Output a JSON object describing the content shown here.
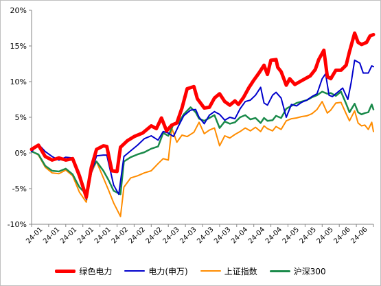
{
  "chart_data": {
    "type": "line",
    "title": "",
    "xlabel": "",
    "ylabel": "",
    "ylim": [
      -10,
      20
    ],
    "yticks": [
      -10,
      -5,
      0,
      5,
      10,
      15,
      20
    ],
    "ytick_labels": [
      "-10%",
      "-5%",
      "0%",
      "5%",
      "10%",
      "15%",
      "20%"
    ],
    "xtick_labels": [
      "24-01",
      "24-01",
      "24-01",
      "24-01",
      "24-01",
      "24-02",
      "24-02",
      "24-02",
      "24-03",
      "24-03",
      "24-03",
      "24-03",
      "24-04",
      "24-04",
      "24-04",
      "24-05",
      "24-05",
      "24-05",
      "24-06",
      "24-06"
    ],
    "grid": false,
    "legend_position": "bottom",
    "x_count": 20,
    "series": [
      {
        "name": "绿色电力",
        "color": "#ff0000",
        "values": [
          [
            0,
            0.5
          ],
          [
            0.4,
            1.1
          ],
          [
            0.8,
            -0.5
          ],
          [
            1.2,
            -1.0
          ],
          [
            1.6,
            -0.7
          ],
          [
            2.0,
            -1.0
          ],
          [
            2.4,
            -0.8
          ],
          [
            2.8,
            -3.2
          ],
          [
            3.2,
            -6.2
          ],
          [
            3.5,
            -2.0
          ],
          [
            3.8,
            0.5
          ],
          [
            4.2,
            1.0
          ],
          [
            4.4,
            0.9
          ],
          [
            4.7,
            -2.5
          ],
          [
            5.0,
            -2.6
          ],
          [
            5.2,
            0.8
          ],
          [
            5.6,
            1.7
          ],
          [
            6.0,
            2.3
          ],
          [
            6.5,
            2.8
          ],
          [
            7.0,
            3.8
          ],
          [
            7.3,
            3.4
          ],
          [
            7.6,
            4.9
          ],
          [
            7.9,
            3.1
          ],
          [
            8.2,
            3.9
          ],
          [
            8.5,
            4.2
          ],
          [
            8.8,
            6.3
          ],
          [
            9.1,
            9.0
          ],
          [
            9.5,
            9.3
          ],
          [
            9.7,
            7.6
          ],
          [
            10.1,
            6.3
          ],
          [
            10.4,
            6.4
          ],
          [
            10.7,
            7.7
          ],
          [
            11.0,
            8.3
          ],
          [
            11.3,
            7.2
          ],
          [
            11.6,
            6.7
          ],
          [
            11.9,
            7.3
          ],
          [
            12.1,
            6.8
          ],
          [
            12.4,
            7.8
          ],
          [
            12.7,
            9.1
          ],
          [
            13.0,
            10.2
          ],
          [
            13.3,
            11.2
          ],
          [
            13.6,
            12.3
          ],
          [
            13.8,
            11.0
          ],
          [
            14.0,
            13.0
          ],
          [
            14.3,
            13.1
          ],
          [
            14.4,
            12.0
          ],
          [
            14.6,
            11.4
          ],
          [
            14.9,
            9.5
          ],
          [
            15.1,
            10.4
          ],
          [
            15.4,
            9.6
          ],
          [
            15.7,
            10.0
          ],
          [
            16.0,
            10.4
          ],
          [
            16.3,
            10.8
          ],
          [
            16.6,
            11.7
          ],
          [
            16.8,
            13.1
          ],
          [
            17.1,
            14.4
          ],
          [
            17.3,
            10.7
          ],
          [
            17.5,
            10.4
          ],
          [
            17.8,
            11.6
          ],
          [
            18.1,
            11.6
          ],
          [
            18.4,
            12.3
          ],
          [
            18.6,
            14.2
          ],
          [
            18.9,
            16.8
          ],
          [
            19.1,
            15.5
          ],
          [
            19.3,
            15.2
          ],
          [
            19.6,
            15.5
          ],
          [
            19.8,
            16.4
          ],
          [
            20.0,
            16.6
          ]
        ]
      },
      {
        "name": "电力(申万)",
        "color": "#0000cc",
        "values": [
          [
            0,
            0.2
          ],
          [
            0.4,
            1.2
          ],
          [
            0.8,
            0.2
          ],
          [
            1.2,
            -0.5
          ],
          [
            1.6,
            -1.0
          ],
          [
            2.0,
            -0.6
          ],
          [
            2.4,
            -0.7
          ],
          [
            2.8,
            -2.8
          ],
          [
            3.2,
            -6.5
          ],
          [
            3.5,
            -2.8
          ],
          [
            3.8,
            -0.4
          ],
          [
            4.2,
            -0.3
          ],
          [
            4.4,
            -0.3
          ],
          [
            4.8,
            -4.5
          ],
          [
            5.1,
            -5.8
          ],
          [
            5.4,
            -0.5
          ],
          [
            5.8,
            0.3
          ],
          [
            6.2,
            1.1
          ],
          [
            6.6,
            2.0
          ],
          [
            7.0,
            2.4
          ],
          [
            7.4,
            1.8
          ],
          [
            7.7,
            3.0
          ],
          [
            8.0,
            2.8
          ],
          [
            8.3,
            2.3
          ],
          [
            8.6,
            3.8
          ],
          [
            8.9,
            5.2
          ],
          [
            9.3,
            6.0
          ],
          [
            9.6,
            6.1
          ],
          [
            9.8,
            5.0
          ],
          [
            10.1,
            4.1
          ],
          [
            10.4,
            5.3
          ],
          [
            10.7,
            5.8
          ],
          [
            11.0,
            5.4
          ],
          [
            11.3,
            4.6
          ],
          [
            11.6,
            5.0
          ],
          [
            11.9,
            4.8
          ],
          [
            12.2,
            6.2
          ],
          [
            12.5,
            7.2
          ],
          [
            12.8,
            7.4
          ],
          [
            13.1,
            8.1
          ],
          [
            13.4,
            9.2
          ],
          [
            13.6,
            7.0
          ],
          [
            13.8,
            6.7
          ],
          [
            14.1,
            8.1
          ],
          [
            14.3,
            8.5
          ],
          [
            14.6,
            7.7
          ],
          [
            14.9,
            5.0
          ],
          [
            15.2,
            6.8
          ],
          [
            15.5,
            6.6
          ],
          [
            15.8,
            7.1
          ],
          [
            16.1,
            7.4
          ],
          [
            16.4,
            7.9
          ],
          [
            16.7,
            8.3
          ],
          [
            17.0,
            10.4
          ],
          [
            17.2,
            11.1
          ],
          [
            17.4,
            8.1
          ],
          [
            17.6,
            7.9
          ],
          [
            17.9,
            8.5
          ],
          [
            18.2,
            9.1
          ],
          [
            18.5,
            7.5
          ],
          [
            18.7,
            9.9
          ],
          [
            18.9,
            13.0
          ],
          [
            19.2,
            12.6
          ],
          [
            19.4,
            11.2
          ],
          [
            19.7,
            11.2
          ],
          [
            19.9,
            12.2
          ],
          [
            20.0,
            12.1
          ]
        ]
      },
      {
        "name": "上证指数",
        "color": "#ff8c00",
        "values": [
          [
            0,
            0.3
          ],
          [
            0.4,
            -0.3
          ],
          [
            0.8,
            -2.0
          ],
          [
            1.2,
            -2.8
          ],
          [
            1.6,
            -2.9
          ],
          [
            2.0,
            -2.4
          ],
          [
            2.4,
            -3.2
          ],
          [
            2.8,
            -5.5
          ],
          [
            3.2,
            -6.9
          ],
          [
            3.5,
            -2.8
          ],
          [
            3.8,
            -1.2
          ],
          [
            4.2,
            -3.5
          ],
          [
            4.5,
            -5.2
          ],
          [
            4.8,
            -7.0
          ],
          [
            5.2,
            -8.9
          ],
          [
            5.4,
            -4.8
          ],
          [
            5.8,
            -3.5
          ],
          [
            6.2,
            -3.2
          ],
          [
            6.6,
            -2.8
          ],
          [
            7.0,
            -2.5
          ],
          [
            7.4,
            -1.5
          ],
          [
            7.7,
            -0.8
          ],
          [
            8.0,
            -1.0
          ],
          [
            8.2,
            3.5
          ],
          [
            8.5,
            1.5
          ],
          [
            8.8,
            2.5
          ],
          [
            9.1,
            2.3
          ],
          [
            9.5,
            2.9
          ],
          [
            9.8,
            4.3
          ],
          [
            10.1,
            2.7
          ],
          [
            10.4,
            3.2
          ],
          [
            10.7,
            3.5
          ],
          [
            11.0,
            1.0
          ],
          [
            11.3,
            2.4
          ],
          [
            11.6,
            2.1
          ],
          [
            11.9,
            2.6
          ],
          [
            12.2,
            3.0
          ],
          [
            12.5,
            3.5
          ],
          [
            12.8,
            3.1
          ],
          [
            13.1,
            3.6
          ],
          [
            13.4,
            3.0
          ],
          [
            13.6,
            3.8
          ],
          [
            13.8,
            3.4
          ],
          [
            14.1,
            3.1
          ],
          [
            14.3,
            3.7
          ],
          [
            14.6,
            3.3
          ],
          [
            14.9,
            4.5
          ],
          [
            15.2,
            4.8
          ],
          [
            15.5,
            4.9
          ],
          [
            15.8,
            5.1
          ],
          [
            16.1,
            5.2
          ],
          [
            16.4,
            5.5
          ],
          [
            16.7,
            6.1
          ],
          [
            17.0,
            7.2
          ],
          [
            17.3,
            5.6
          ],
          [
            17.5,
            6.0
          ],
          [
            17.8,
            7.0
          ],
          [
            18.1,
            7.1
          ],
          [
            18.4,
            5.5
          ],
          [
            18.6,
            4.5
          ],
          [
            18.9,
            5.9
          ],
          [
            19.1,
            4.2
          ],
          [
            19.3,
            3.8
          ],
          [
            19.5,
            3.9
          ],
          [
            19.7,
            3.3
          ],
          [
            19.9,
            4.3
          ],
          [
            20.0,
            3.0
          ]
        ]
      },
      {
        "name": "沪深300",
        "color": "#1a8a4a",
        "values": [
          [
            0,
            0.2
          ],
          [
            0.4,
            -0.2
          ],
          [
            0.8,
            -1.8
          ],
          [
            1.2,
            -2.5
          ],
          [
            1.6,
            -2.6
          ],
          [
            2.0,
            -2.2
          ],
          [
            2.4,
            -3.0
          ],
          [
            2.8,
            -4.8
          ],
          [
            3.2,
            -5.8
          ],
          [
            3.5,
            -2.3
          ],
          [
            3.8,
            -1.2
          ],
          [
            4.2,
            -2.5
          ],
          [
            4.5,
            -3.8
          ],
          [
            4.8,
            -5.3
          ],
          [
            5.2,
            -5.8
          ],
          [
            5.4,
            -1.2
          ],
          [
            5.8,
            -0.6
          ],
          [
            6.2,
            -0.2
          ],
          [
            6.6,
            0.1
          ],
          [
            7.0,
            0.6
          ],
          [
            7.4,
            0.9
          ],
          [
            7.7,
            2.8
          ],
          [
            8.0,
            2.4
          ],
          [
            8.3,
            4.0
          ],
          [
            8.6,
            4.2
          ],
          [
            8.9,
            5.4
          ],
          [
            9.3,
            6.4
          ],
          [
            9.6,
            5.7
          ],
          [
            9.8,
            4.8
          ],
          [
            10.1,
            4.5
          ],
          [
            10.4,
            4.9
          ],
          [
            10.7,
            5.3
          ],
          [
            11.0,
            3.5
          ],
          [
            11.3,
            4.4
          ],
          [
            11.6,
            4.1
          ],
          [
            11.9,
            4.3
          ],
          [
            12.2,
            5.0
          ],
          [
            12.5,
            5.3
          ],
          [
            12.8,
            4.7
          ],
          [
            13.1,
            4.9
          ],
          [
            13.4,
            4.2
          ],
          [
            13.6,
            4.9
          ],
          [
            13.8,
            4.5
          ],
          [
            14.1,
            4.6
          ],
          [
            14.3,
            5.2
          ],
          [
            14.6,
            4.9
          ],
          [
            14.9,
            6.2
          ],
          [
            15.2,
            6.6
          ],
          [
            15.5,
            7.0
          ],
          [
            15.8,
            7.2
          ],
          [
            16.1,
            7.4
          ],
          [
            16.4,
            7.8
          ],
          [
            16.7,
            8.1
          ],
          [
            17.0,
            8.6
          ],
          [
            17.3,
            8.3
          ],
          [
            17.5,
            8.4
          ],
          [
            17.8,
            8.0
          ],
          [
            18.1,
            8.6
          ],
          [
            18.4,
            6.9
          ],
          [
            18.6,
            5.7
          ],
          [
            18.9,
            6.9
          ],
          [
            19.1,
            5.7
          ],
          [
            19.3,
            5.4
          ],
          [
            19.5,
            5.6
          ],
          [
            19.7,
            5.7
          ],
          [
            19.9,
            6.8
          ],
          [
            20.0,
            6.1
          ]
        ]
      }
    ]
  }
}
